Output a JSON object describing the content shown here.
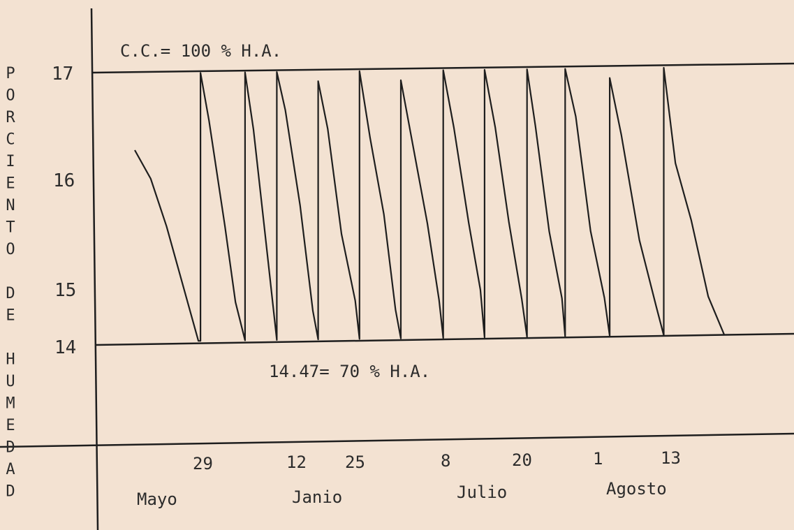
{
  "chart_data": {
    "type": "line",
    "ylabel_letters": [
      "P",
      "O",
      "R",
      "C",
      "I",
      "E",
      "N",
      "T",
      "O",
      "",
      "D",
      "E",
      "",
      "H",
      "U",
      "M",
      "E",
      "D",
      "A",
      "D"
    ],
    "ylim": [
      13,
      17
    ],
    "y_ticks": [
      "17",
      "16",
      "15",
      "14"
    ],
    "x_ticks": [
      "29",
      "12",
      "25",
      "8",
      "20",
      "1",
      "13"
    ],
    "months": [
      "Mayo",
      "Janio",
      "Julio",
      "Agosto"
    ],
    "annotations": {
      "upper": "C.C.= 100 % H.A.",
      "lower": "14.47= 70 % H.A."
    },
    "reference_lines": [
      17.0,
      14.47
    ],
    "series": [
      {
        "points": [
          [
            0,
            16.2
          ],
          [
            1.5,
            15.9
          ],
          [
            3,
            15.4
          ],
          [
            4.5,
            14.8
          ],
          [
            6,
            14.2
          ],
          [
            6.2,
            14.2
          ],
          [
            6.2,
            17.0
          ],
          [
            7,
            16.5
          ],
          [
            8.5,
            15.4
          ],
          [
            9.5,
            14.6
          ],
          [
            10.4,
            14.2
          ],
          [
            10.4,
            17.0
          ],
          [
            11.2,
            16.4
          ],
          [
            12.6,
            15.0
          ],
          [
            13.4,
            14.2
          ],
          [
            13.4,
            17.0
          ],
          [
            14.2,
            16.6
          ],
          [
            15.6,
            15.6
          ],
          [
            16.8,
            14.5
          ],
          [
            17.3,
            14.2
          ],
          [
            17.3,
            16.9
          ],
          [
            18.2,
            16.4
          ],
          [
            19.5,
            15.3
          ],
          [
            20.8,
            14.6
          ],
          [
            21.2,
            14.2
          ],
          [
            21.2,
            17.0
          ],
          [
            22.2,
            16.3
          ],
          [
            23.5,
            15.5
          ],
          [
            24.6,
            14.5
          ],
          [
            25.1,
            14.2
          ],
          [
            25.1,
            16.9
          ],
          [
            26.1,
            16.3
          ],
          [
            27.6,
            15.4
          ],
          [
            28.7,
            14.6
          ],
          [
            29.1,
            14.2
          ],
          [
            29.1,
            17.0
          ],
          [
            30.1,
            16.4
          ],
          [
            31.5,
            15.4
          ],
          [
            32.6,
            14.7
          ],
          [
            33.0,
            14.2
          ],
          [
            33.0,
            17.0
          ],
          [
            34.0,
            16.4
          ],
          [
            35.3,
            15.4
          ],
          [
            36.5,
            14.6
          ],
          [
            37.0,
            14.2
          ],
          [
            37.0,
            17.0
          ],
          [
            37.8,
            16.4
          ],
          [
            39.1,
            15.3
          ],
          [
            40.3,
            14.6
          ],
          [
            40.6,
            14.2
          ],
          [
            40.6,
            17.0
          ],
          [
            41.6,
            16.5
          ],
          [
            43.0,
            15.3
          ],
          [
            44.3,
            14.6
          ],
          [
            44.8,
            14.2
          ],
          [
            44.8,
            16.9
          ],
          [
            45.9,
            16.3
          ],
          [
            47.6,
            15.2
          ],
          [
            49.2,
            14.5
          ],
          [
            49.9,
            14.2
          ],
          [
            49.9,
            17.0
          ],
          [
            51.0,
            16.0
          ],
          [
            52.5,
            15.4
          ],
          [
            54.1,
            14.6
          ],
          [
            55.6,
            14.2
          ]
        ]
      }
    ]
  }
}
